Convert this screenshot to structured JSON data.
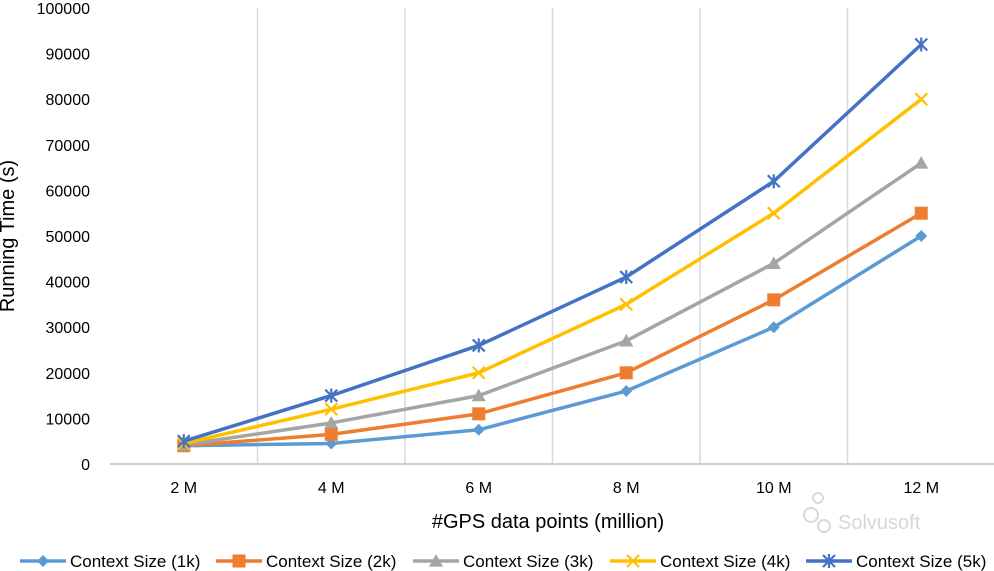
{
  "chart_data": {
    "type": "line",
    "title": "",
    "xlabel": "#GPS data points (million)",
    "ylabel": "Running Time (s)",
    "categories": [
      "2 M",
      "4 M",
      "6 M",
      "8 M",
      "10 M",
      "12 M"
    ],
    "ylim": [
      0,
      100000
    ],
    "yticks": [
      "0",
      "10000",
      "20000",
      "30000",
      "40000",
      "50000",
      "60000",
      "70000",
      "80000",
      "90000",
      "100000"
    ],
    "grid": "vertical",
    "legend_position": "bottom",
    "series": [
      {
        "name": "Context Size (1k)",
        "color": "#5b9bd5",
        "marker": "diamond",
        "values": [
          4000,
          4500,
          7500,
          16000,
          30000,
          50000
        ]
      },
      {
        "name": "Context Size (2k)",
        "color": "#ed7d31",
        "marker": "square",
        "values": [
          4000,
          6500,
          11000,
          20000,
          36000,
          55000
        ]
      },
      {
        "name": "Context Size (3k)",
        "color": "#a5a5a5",
        "marker": "triangle",
        "values": [
          4200,
          9000,
          15000,
          27000,
          44000,
          66000
        ]
      },
      {
        "name": "Context Size (4k)",
        "color": "#ffc000",
        "marker": "x",
        "values": [
          4500,
          12000,
          20000,
          35000,
          55000,
          80000
        ]
      },
      {
        "name": "Context Size (5k)",
        "color": "#4472c4",
        "marker": "star",
        "values": [
          5000,
          15000,
          26000,
          41000,
          62000,
          92000
        ]
      }
    ]
  },
  "watermark": {
    "text": "Solvusoft",
    "icon": "solvusoft-logo-icon"
  }
}
